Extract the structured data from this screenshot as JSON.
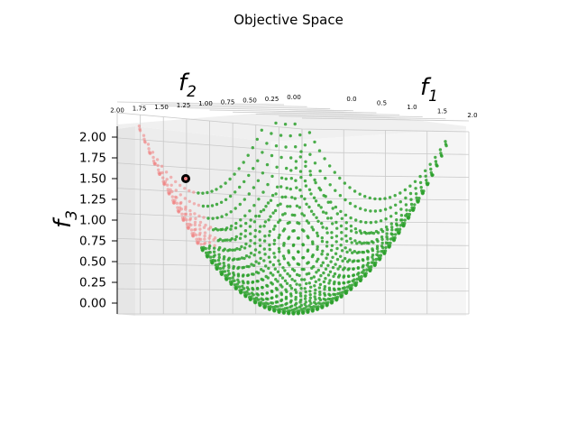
{
  "chart_data": {
    "type": "scatter",
    "title": "Objective Space",
    "axes": {
      "x": {
        "label": "f",
        "label_sub": "1",
        "range": [
          0,
          2
        ],
        "ticks": [
          "0.0",
          "0.5",
          "1.0",
          "1.5",
          "2.0"
        ]
      },
      "y": {
        "label": "f",
        "label_sub": "2",
        "range": [
          0,
          2
        ],
        "ticks": [
          "0.00",
          "0.25",
          "0.50",
          "0.75",
          "1.00",
          "1.25",
          "1.50",
          "1.75",
          "2.00"
        ]
      },
      "z": {
        "label": "f",
        "label_sub": "3",
        "range": [
          0,
          2
        ],
        "ticks": [
          "0.00",
          "0.25",
          "0.50",
          "0.75",
          "1.00",
          "1.25",
          "1.50",
          "1.75",
          "2.00"
        ]
      }
    },
    "grid": true,
    "series": [
      {
        "color": "#2ca02c",
        "surface": "paraboloid",
        "note_visible": "dense green point surface"
      },
      {
        "color": "#f08080",
        "surface": "paraboloid region",
        "note_visible": "light red point surface"
      }
    ],
    "highlighted_point": {
      "f1": 0.15,
      "f2": 1.55,
      "f3": 1.5,
      "color": "#000000"
    }
  }
}
